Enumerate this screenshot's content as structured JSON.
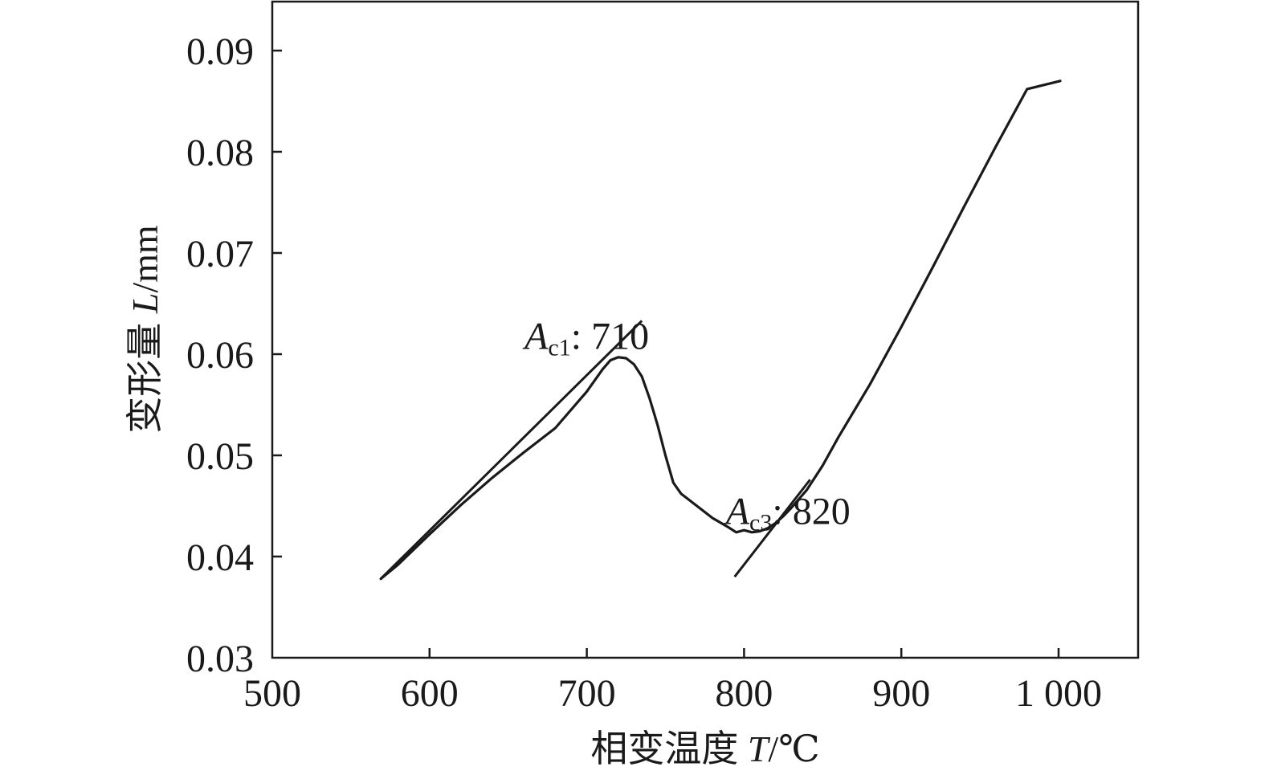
{
  "chart_data": {
    "type": "line",
    "title": "",
    "xlabel": {
      "prefix": "相变温度 ",
      "var": "T",
      "unit": "/℃"
    },
    "ylabel": {
      "prefix": "变形量 ",
      "var": "L",
      "unit": "/mm"
    },
    "xlim": [
      500,
      1050
    ],
    "ylim": [
      0.03,
      0.095
    ],
    "x_ticks": [
      500,
      600,
      700,
      800,
      900,
      1000
    ],
    "x_tick_labels": [
      "500",
      "600",
      "700",
      "800",
      "900",
      "1 000"
    ],
    "y_ticks": [
      0.03,
      0.04,
      0.05,
      0.06,
      0.07,
      0.08,
      0.09
    ],
    "y_tick_labels": [
      "0.03",
      "0.04",
      "0.05",
      "0.06",
      "0.07",
      "0.08",
      "0.09"
    ],
    "grid": false,
    "legend": "none",
    "line_color": "#1a1a1a",
    "series": [
      {
        "x": [
          569,
          580,
          600,
          620,
          640,
          660,
          680,
          700,
          710,
          715,
          720,
          725,
          730,
          735,
          740,
          745,
          750,
          755,
          760,
          770,
          780,
          790,
          795,
          800,
          805,
          810,
          815,
          820,
          825,
          830,
          840,
          850,
          860,
          880,
          900,
          920,
          940,
          960,
          980,
          1001
        ],
        "y": [
          0.0378,
          0.0392,
          0.0422,
          0.0451,
          0.0478,
          0.0503,
          0.0527,
          0.0563,
          0.0585,
          0.0594,
          0.0597,
          0.0596,
          0.059,
          0.0578,
          0.0556,
          0.053,
          0.05,
          0.0473,
          0.0462,
          0.045,
          0.0438,
          0.0429,
          0.0424,
          0.0426,
          0.0424,
          0.0425,
          0.0428,
          0.0433,
          0.044,
          0.0448,
          0.0466,
          0.049,
          0.0518,
          0.057,
          0.0627,
          0.0686,
          0.0746,
          0.0805,
          0.0862,
          0.087
        ]
      }
    ],
    "tangents": [
      {
        "name": "Ac1 tangent",
        "x": [
          569,
          735
        ],
        "y": [
          0.0378,
          0.0633
        ]
      },
      {
        "name": "Ac3 tangent",
        "x": [
          794,
          842
        ],
        "y": [
          0.038,
          0.0476
        ]
      }
    ],
    "annotations": [
      {
        "symbol": "A",
        "subscript": "c1",
        "text": ": 710",
        "x": 700,
        "y": 0.0605
      },
      {
        "symbol": "A",
        "subscript": "c3",
        "text": ": 820",
        "x": 828,
        "y": 0.0432
      }
    ]
  }
}
